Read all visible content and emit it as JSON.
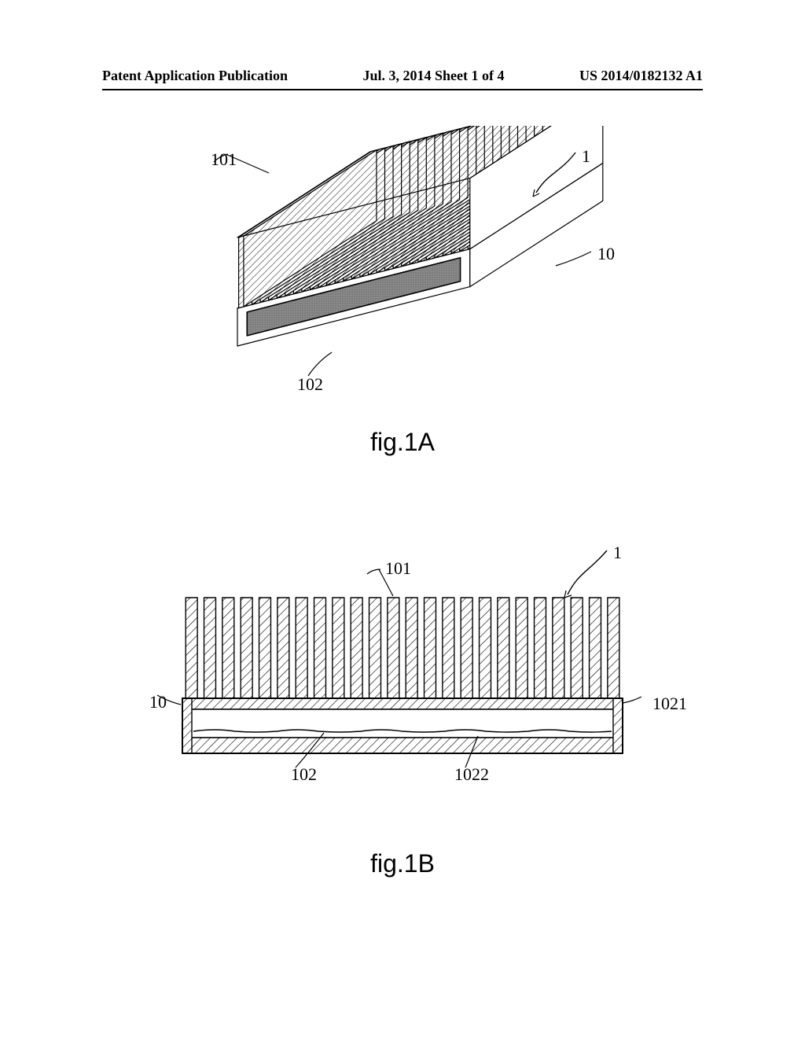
{
  "header": {
    "left": "Patent Application Publication",
    "center": "Jul. 3, 2014  Sheet 1 of 4",
    "right": "US 2014/0182132 A1"
  },
  "figA": {
    "caption": "fig.1A",
    "callouts": {
      "c101": "101",
      "c1": "1",
      "c10": "10",
      "c102": "102"
    },
    "style": {
      "stroke": "#000000",
      "fin_hatch": "#000000",
      "cavity_fill": "#808080",
      "background": "#ffffff",
      "fin_count": 28,
      "line_width": 1.2
    }
  },
  "figB": {
    "caption": "fig.1B",
    "callouts": {
      "c101": "101",
      "c1": "1",
      "c10": "10",
      "c1021": "1021",
      "c102": "102",
      "c1022": "1022"
    },
    "style": {
      "stroke": "#000000",
      "background": "#ffffff",
      "fin_count": 24,
      "line_width": 1.4
    }
  }
}
